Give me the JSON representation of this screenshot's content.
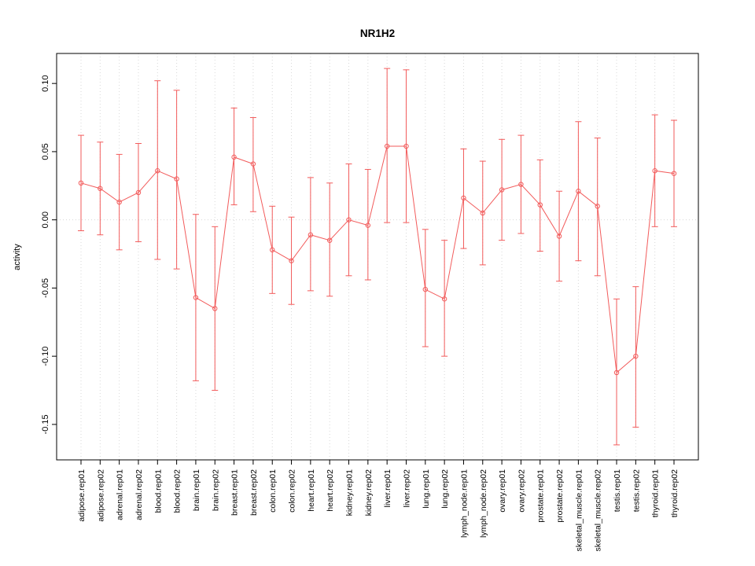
{
  "chart_data": {
    "type": "line",
    "title": "NR1H2",
    "ylabel": "activity",
    "xlabel": "",
    "legend": "none",
    "marker": "open-circle",
    "error_bars": true,
    "x_label_rotation": 90,
    "grid": {
      "vertical": "dotted per category",
      "horizontal": "dotted line at zero"
    },
    "ylim": [
      -0.176,
      0.122
    ],
    "yticks": [
      -0.15,
      -0.1,
      -0.05,
      0.0,
      0.05,
      0.1
    ],
    "ytick_labels": [
      "-0.15",
      "-0.10",
      "-0.05",
      "0.00",
      "0.05",
      "0.10"
    ],
    "colors": {
      "series": "#f25b5b",
      "grid": "#d8d8d8",
      "zero_line": "#d8d8d8",
      "axis": "#000000",
      "background": "#ffffff"
    },
    "categories": [
      "adipose.rep01",
      "adipose.rep02",
      "adrenal.rep01",
      "adrenal.rep02",
      "blood.rep01",
      "blood.rep02",
      "brain.rep01",
      "brain.rep02",
      "breast.rep01",
      "breast.rep02",
      "colon.rep01",
      "colon.rep02",
      "heart.rep01",
      "heart.rep02",
      "kidney.rep01",
      "kidney.rep02",
      "liver.rep01",
      "liver.rep02",
      "lung.rep01",
      "lung.rep02",
      "lymph_node.rep01",
      "lymph_node.rep02",
      "ovary.rep01",
      "ovary.rep02",
      "prostate.rep01",
      "prostate.rep02",
      "skeletal_muscle.rep01",
      "skeletal_muscle.rep02",
      "testis.rep01",
      "testis.rep02",
      "thyroid.rep01",
      "thyroid.rep02"
    ],
    "series": [
      {
        "name": "activity",
        "values": [
          0.027,
          0.023,
          0.013,
          0.02,
          0.036,
          0.03,
          -0.057,
          -0.065,
          0.046,
          0.041,
          -0.022,
          -0.03,
          -0.011,
          -0.015,
          0.0,
          -0.004,
          0.054,
          0.054,
          -0.051,
          -0.058,
          0.016,
          0.005,
          0.022,
          0.026,
          0.011,
          -0.012,
          0.021,
          0.01,
          -0.112,
          -0.1,
          0.036,
          0.034
        ],
        "upper": [
          0.062,
          0.057,
          0.048,
          0.056,
          0.102,
          0.095,
          0.004,
          -0.005,
          0.082,
          0.075,
          0.01,
          0.002,
          0.031,
          0.027,
          0.041,
          0.037,
          0.111,
          0.11,
          -0.007,
          -0.015,
          0.052,
          0.043,
          0.059,
          0.062,
          0.044,
          0.021,
          0.072,
          0.06,
          -0.058,
          -0.049,
          0.077,
          0.073
        ],
        "lower": [
          -0.008,
          -0.011,
          -0.022,
          -0.016,
          -0.029,
          -0.036,
          -0.118,
          -0.125,
          0.011,
          0.006,
          -0.054,
          -0.062,
          -0.052,
          -0.056,
          -0.041,
          -0.044,
          -0.002,
          -0.002,
          -0.093,
          -0.1,
          -0.021,
          -0.033,
          -0.015,
          -0.01,
          -0.023,
          -0.045,
          -0.03,
          -0.041,
          -0.165,
          -0.152,
          -0.005,
          -0.005
        ]
      }
    ]
  }
}
